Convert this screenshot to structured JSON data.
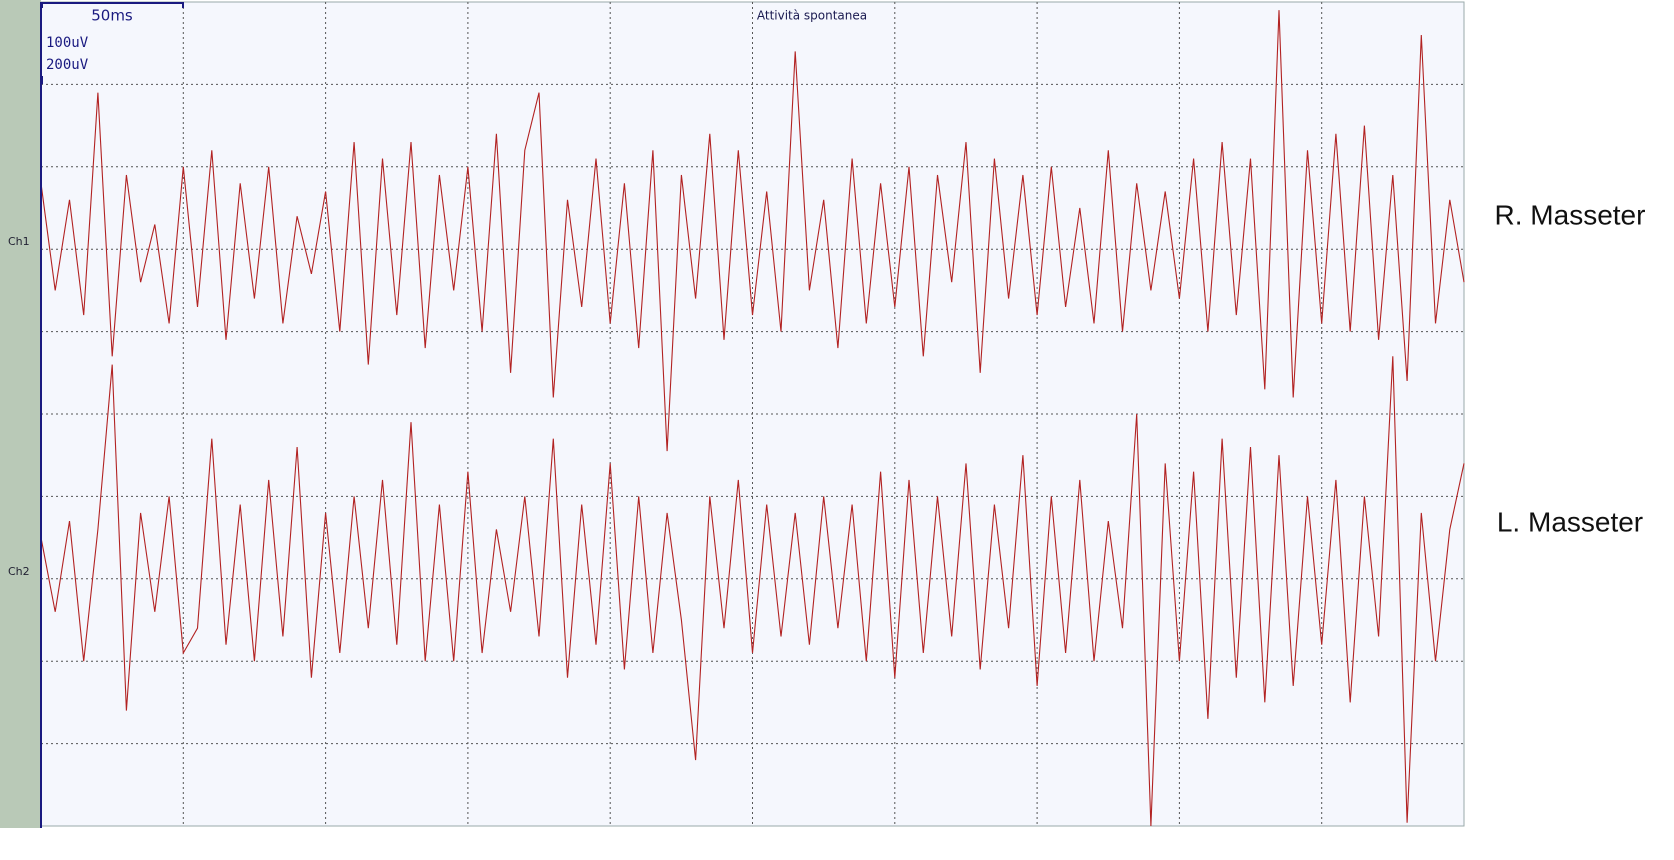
{
  "chart_data": {
    "type": "line",
    "title": "Attività spontanea",
    "time_scale": "50ms",
    "amplitude_scales": [
      "100uV",
      "200uV"
    ],
    "xlim": [
      0,
      500
    ],
    "grid": true,
    "x": [
      0,
      5,
      10,
      15,
      20,
      25,
      30,
      35,
      40,
      45,
      50,
      55,
      60,
      65,
      70,
      75,
      80,
      85,
      90,
      95,
      100,
      105,
      110,
      115,
      120,
      125,
      130,
      135,
      140,
      145,
      150,
      155,
      160,
      165,
      170,
      175,
      180,
      185,
      190,
      195,
      200,
      205,
      210,
      215,
      220,
      225,
      230,
      235,
      240,
      245,
      250,
      255,
      260,
      265,
      270,
      275,
      280,
      285,
      290,
      295,
      300,
      305,
      310,
      315,
      320,
      325,
      330,
      335,
      340,
      345,
      350,
      355,
      360,
      365,
      370,
      375,
      380,
      385,
      390,
      395,
      400,
      405,
      410,
      415,
      420,
      425,
      430,
      435,
      440,
      445,
      450,
      455,
      460,
      465,
      470,
      475,
      480,
      485,
      490,
      495,
      500
    ],
    "series": [
      {
        "name": "Ch1",
        "label": "R. Masseter",
        "color": "#b22222",
        "ylim": [
          -7,
          3
        ],
        "values": [
          0.8,
          -0.5,
          0.6,
          -0.8,
          1.9,
          -1.3,
          0.9,
          -0.4,
          0.3,
          -0.9,
          1.0,
          -0.7,
          1.2,
          -1.1,
          0.8,
          -0.6,
          1.0,
          -0.9,
          0.4,
          -0.3,
          0.7,
          -1.0,
          1.3,
          -1.4,
          1.1,
          -0.8,
          1.3,
          -1.2,
          0.9,
          -0.5,
          1.0,
          -1.0,
          1.4,
          -1.5,
          1.2,
          1.9,
          -1.8,
          0.6,
          -0.7,
          1.1,
          -0.9,
          0.8,
          -1.2,
          1.2,
          -2.45,
          0.9,
          -0.6,
          1.4,
          -1.1,
          1.2,
          -0.8,
          0.7,
          -1.0,
          2.4,
          -0.5,
          0.6,
          -1.2,
          1.1,
          -0.9,
          0.8,
          -0.7,
          1.0,
          -1.3,
          0.9,
          -0.4,
          1.3,
          -1.5,
          1.1,
          -0.6,
          0.9,
          -0.8,
          1.0,
          -0.7,
          0.5,
          -0.9,
          1.2,
          -1.0,
          0.8,
          -0.5,
          0.7,
          -0.6,
          1.1,
          -1.0,
          1.3,
          -0.8,
          1.1,
          -1.7,
          2.9,
          -1.8,
          1.2,
          -0.9,
          1.4,
          -1.0,
          1.5,
          -1.1,
          0.9,
          -1.6,
          2.6,
          -0.9,
          0.6,
          -0.4
        ]
      },
      {
        "name": "Ch2",
        "label": "L. Masseter",
        "color": "#b22222",
        "ylim": [
          -3,
          7
        ],
        "values": [
          0.5,
          -0.4,
          0.7,
          -1.0,
          0.6,
          2.6,
          -1.6,
          0.8,
          -0.4,
          1.0,
          -0.9,
          -0.6,
          1.7,
          -0.8,
          0.9,
          -1.0,
          1.2,
          -0.7,
          1.6,
          -1.2,
          0.8,
          -0.9,
          1.0,
          -0.6,
          1.2,
          -0.8,
          1.9,
          -1.0,
          0.9,
          -1.0,
          1.3,
          -0.9,
          0.6,
          -0.4,
          1.0,
          -0.7,
          1.7,
          -1.2,
          0.9,
          -0.8,
          1.4,
          -1.1,
          1.0,
          -0.9,
          0.8,
          -0.5,
          -2.2,
          1.0,
          -0.6,
          1.2,
          -0.9,
          0.9,
          -0.7,
          0.8,
          -0.8,
          1.0,
          -0.6,
          0.9,
          -1.0,
          1.3,
          -1.2,
          1.2,
          -0.9,
          1.0,
          -0.7,
          1.4,
          -1.1,
          0.9,
          -0.6,
          1.5,
          -1.3,
          1.0,
          -0.9,
          1.2,
          -1.0,
          0.7,
          -0.6,
          2.0,
          -3.0,
          1.4,
          -1.0,
          1.3,
          -1.7,
          1.7,
          -1.2,
          1.6,
          -1.5,
          1.5,
          -1.3,
          1.0,
          -0.8,
          1.2,
          -1.5,
          1.0,
          -0.7,
          2.7,
          -2.96,
          0.8,
          -1.0,
          0.6,
          1.4
        ]
      }
    ]
  }
}
